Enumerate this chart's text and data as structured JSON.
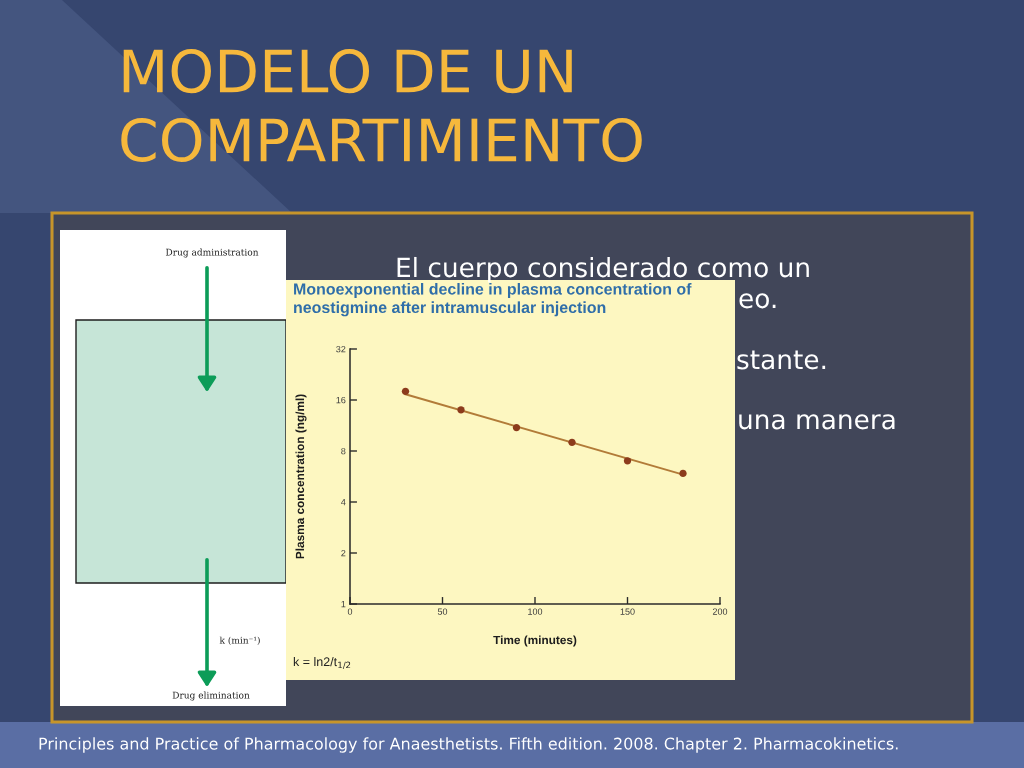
{
  "chart_data": {
    "type": "scatter",
    "title": "Monoexponential decline in plasma concentration of\nneostigmine after intramuscular injection",
    "xlabel": "Time (minutes)",
    "ylabel": "Plasma concentration (ng/ml)",
    "xlim": [
      0,
      200
    ],
    "xticks": [
      0,
      50,
      100,
      150,
      200
    ],
    "ylim": [
      1,
      32
    ],
    "yticks": [
      1,
      2,
      4,
      8,
      16,
      32
    ],
    "log": "y",
    "series": [
      {
        "color": "#8c3b1c",
        "marker": "circle",
        "x": [
          30,
          60,
          90,
          120,
          150,
          180
        ],
        "values": [
          18,
          14,
          11,
          9,
          7,
          5.9
        ]
      },
      {
        "type": "line",
        "color": "#b27b38",
        "line_style": "solid",
        "x": [
          30,
          180
        ],
        "values": [
          17.3,
          5.8
        ]
      }
    ],
    "annotations": [
      "MODELO DE UN\nCOMPARTIMIENTO",
      "El cuerpo considerado como un",
      "eo.",
      "stante.",
      "una manera",
      "Drug administration",
      "k (min⁻¹)",
      "Drug elimination",
      "k = ln2/t$_{1/2}$",
      "Principles and Practice of Pharmacology for Anaesthetists. Fifth edition. 2008. Chapter 2. Pharmacokinetics."
    ]
  }
}
